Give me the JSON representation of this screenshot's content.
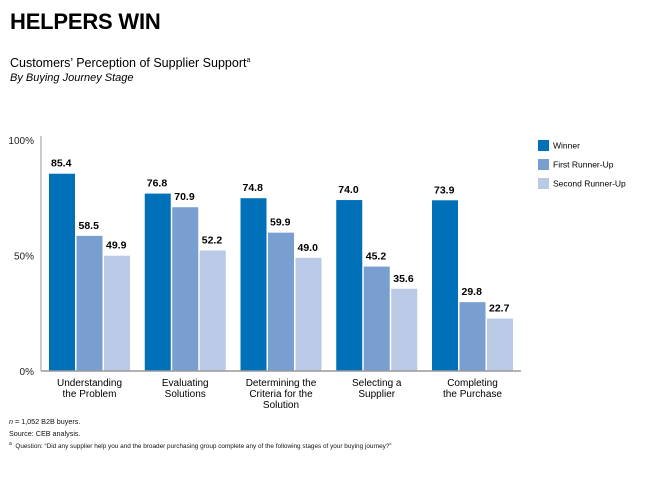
{
  "header": {
    "title": "HELPERS WIN",
    "subtitle": "Customers’ Perception of Supplier Support",
    "subtitle_superscript": "a",
    "subtitle2": "By Buying Journey Stage"
  },
  "footnotes": {
    "n": "n = 1,052 B2B buyers.",
    "source": "Source: CEB analysis.",
    "question_marker": "a",
    "question": "Question: “Did any supplier help you and the broader purchasing group complete any of the following stages of your buying journey?”"
  },
  "chart_data": {
    "type": "bar",
    "title": "Customers’ Perception of Supplier Support",
    "subtitle": "By Buying Journey Stage",
    "xlabel": "",
    "ylabel": "",
    "ylim": [
      0,
      100
    ],
    "yticks": [
      0,
      50,
      100
    ],
    "ytick_labels": [
      "0%",
      "50%",
      "100%"
    ],
    "grid": false,
    "legend_position": "right",
    "categories": [
      [
        "Understanding",
        "the Problem"
      ],
      [
        "Evaluating",
        "Solutions"
      ],
      [
        "Determining the",
        "Criteria for the",
        "Solution"
      ],
      [
        "Selecting a",
        "Supplier"
      ],
      [
        "Completing",
        "the Purchase"
      ]
    ],
    "series": [
      {
        "name": "Winner",
        "color": "#0070b8",
        "values": [
          85.4,
          76.8,
          74.8,
          74.0,
          73.9
        ]
      },
      {
        "name": "First Runner-Up",
        "color": "#799fd1",
        "values": [
          58.5,
          70.9,
          59.9,
          45.2,
          29.8
        ]
      },
      {
        "name": "Second Runner-Up",
        "color": "#b9c9e6",
        "values": [
          49.9,
          52.2,
          49.0,
          35.6,
          22.7
        ]
      }
    ]
  }
}
